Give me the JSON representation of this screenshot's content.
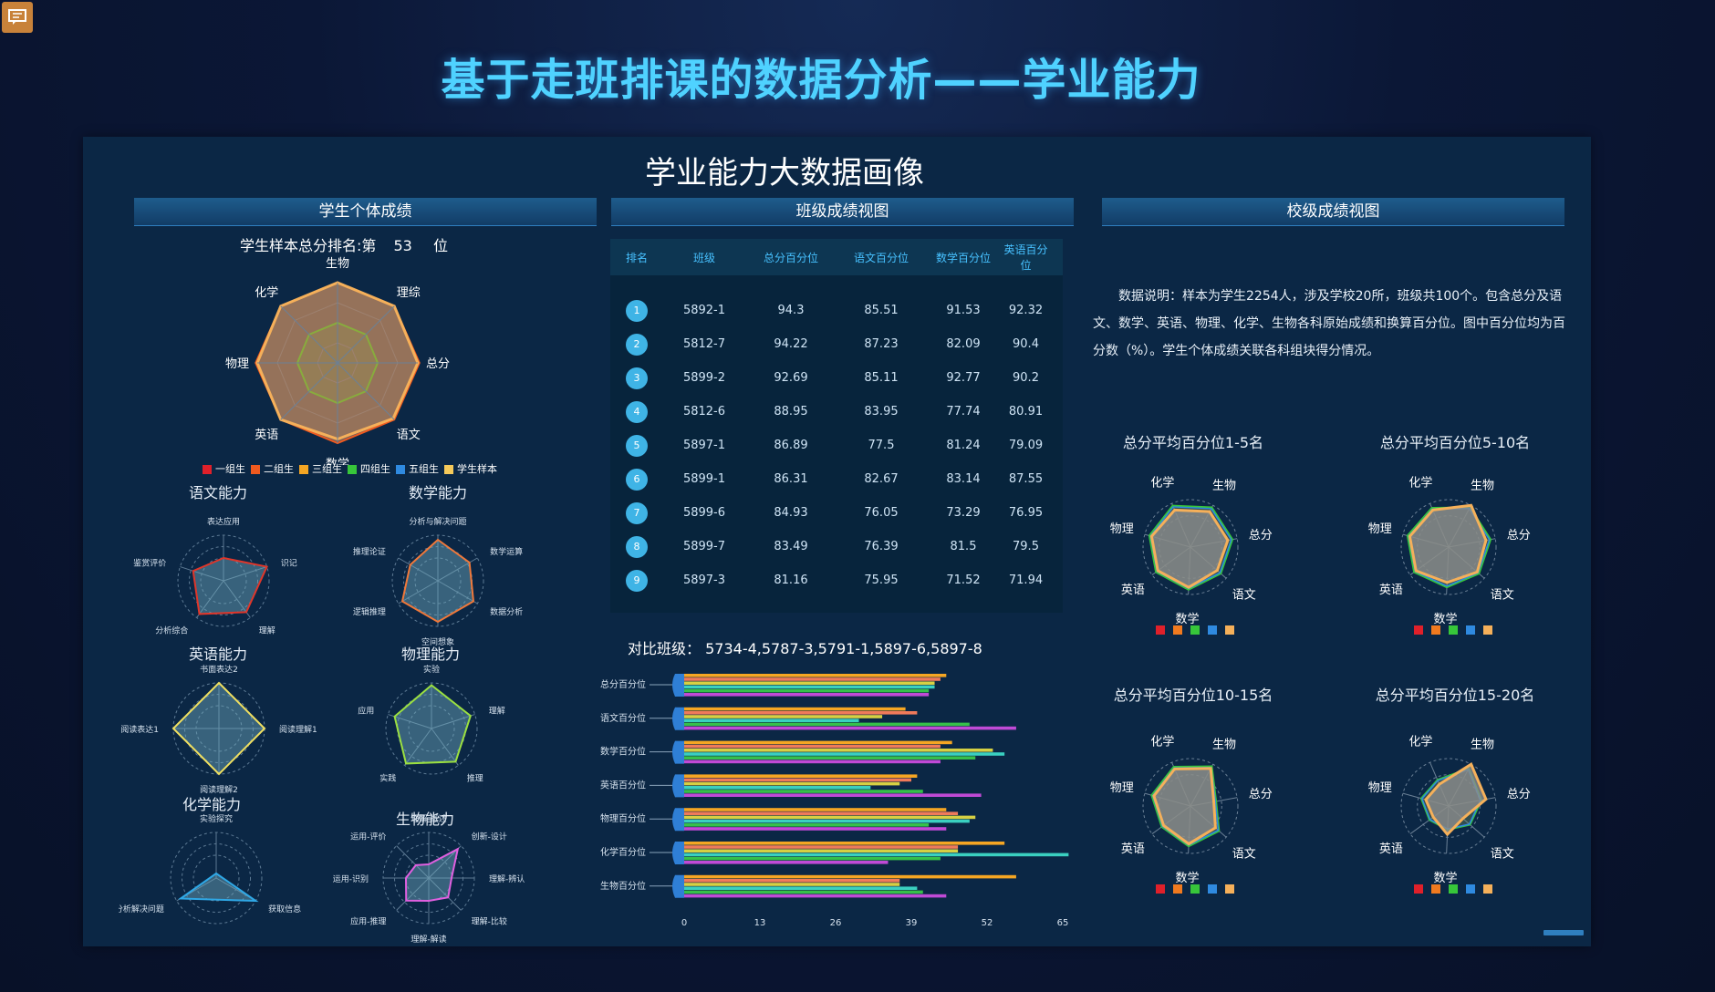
{
  "page": {
    "title": "基于走班排课的数据分析——学业能力",
    "panel_title": "学业能力大数据画像"
  },
  "sections": {
    "student": "学生个体成绩",
    "class": "班级成绩视图",
    "school": "校级成绩视图"
  },
  "student": {
    "rank_prefix": "学生样本总分排名:第",
    "rank_value": "53",
    "rank_suffix": "位",
    "main_radar": {
      "axes": [
        "生物",
        "理综",
        "总分",
        "语文",
        "数学",
        "英语",
        "物理",
        "化学"
      ],
      "legend": [
        "一组生",
        "二组生",
        "三组生",
        "四组生",
        "五组生",
        "学生样本"
      ],
      "legend_colors": [
        "#e0202a",
        "#f05a1f",
        "#f5a623",
        "#37c63a",
        "#2f8ae0",
        "#f5c95a"
      ]
    },
    "sub_radars": [
      {
        "title": "语文能力",
        "axes": [
          "表达应用",
          "识记",
          "理解",
          "分析综合",
          "鉴赏评价"
        ],
        "color": "#e0362a"
      },
      {
        "title": "数学能力",
        "axes": [
          "分析与解决问题",
          "数学运算",
          "数据分析",
          "空间想象",
          "逻辑推理",
          "推理论证"
        ],
        "color": "#f0783a"
      },
      {
        "title": "英语能力",
        "axes": [
          "书面表达2",
          "阅读理解1",
          "阅读理解2",
          "阅读表达1"
        ],
        "color": "#f0e060"
      },
      {
        "title": "物理能力",
        "axes": [
          "实验",
          "理解",
          "推理",
          "实践",
          "应用"
        ],
        "color": "#9be040"
      },
      {
        "title": "化学能力",
        "axes": [
          "实验探究",
          "获取信息",
          "分析解决问题"
        ],
        "color": "#2fa8e6"
      },
      {
        "title": "生物能力",
        "axes": [
          "理解-概述",
          "创新-设计",
          "理解-辨认",
          "理解-比较",
          "理解-解读",
          "应用-推理",
          "运用-识别",
          "运用-评价"
        ],
        "color": "#e060e0"
      }
    ]
  },
  "class_view": {
    "headers": [
      "排名",
      "班级",
      "总分百分位",
      "语文百分位",
      "数学百分位",
      "英语百分位"
    ],
    "rows": [
      {
        "rank": "1",
        "class": "5892-1",
        "total": "94.3",
        "chinese": "85.51",
        "math": "91.53",
        "english": "92.32"
      },
      {
        "rank": "2",
        "class": "5812-7",
        "total": "94.22",
        "chinese": "87.23",
        "math": "82.09",
        "english": "90.4"
      },
      {
        "rank": "3",
        "class": "5899-2",
        "total": "92.69",
        "chinese": "85.11",
        "math": "92.77",
        "english": "90.2"
      },
      {
        "rank": "4",
        "class": "5812-6",
        "total": "88.95",
        "chinese": "83.95",
        "math": "77.74",
        "english": "80.91"
      },
      {
        "rank": "5",
        "class": "5897-1",
        "total": "86.89",
        "chinese": "77.5",
        "math": "81.24",
        "english": "79.09"
      },
      {
        "rank": "6",
        "class": "5899-1",
        "total": "86.31",
        "chinese": "82.67",
        "math": "83.14",
        "english": "87.55"
      },
      {
        "rank": "7",
        "class": "5899-6",
        "total": "84.93",
        "chinese": "76.05",
        "math": "73.29",
        "english": "76.95"
      },
      {
        "rank": "8",
        "class": "5899-7",
        "total": "83.49",
        "chinese": "76.39",
        "math": "81.5",
        "english": "79.5"
      },
      {
        "rank": "9",
        "class": "5897-3",
        "total": "81.16",
        "chinese": "75.95",
        "math": "71.52",
        "english": "71.94"
      }
    ],
    "compare_label": "对比班级：",
    "compare_classes": "5734-4,5787-3,5791-1,5897-6,5897-8"
  },
  "chart_data": {
    "type": "bar",
    "orientation": "horizontal",
    "categories": [
      "总分百分位",
      "语文百分位",
      "数学百分位",
      "英语百分位",
      "物理百分位",
      "化学百分位",
      "生物百分位"
    ],
    "xlim": [
      0,
      65
    ],
    "xticks": [
      "0",
      "13",
      "26",
      "39",
      "52",
      "65"
    ],
    "series": [
      {
        "color": "#f5a623",
        "values": [
          45,
          38,
          46,
          40,
          45,
          55,
          57
        ]
      },
      {
        "color": "#f07a5a",
        "values": [
          44,
          40,
          44,
          39,
          47,
          47,
          37
        ]
      },
      {
        "color": "#d6d043",
        "values": [
          43,
          34,
          53,
          37,
          50,
          47,
          37
        ]
      },
      {
        "color": "#3ad0c0",
        "values": [
          43,
          30,
          55,
          32,
          49,
          66,
          40
        ]
      },
      {
        "color": "#36c04a",
        "values": [
          42,
          49,
          50,
          41,
          42,
          44,
          41
        ]
      },
      {
        "color": "#c04ad6",
        "values": [
          42,
          57,
          44,
          51,
          45,
          35,
          45
        ]
      }
    ]
  },
  "school": {
    "description": "数据说明：样本为学生2254人，涉及学校20所，班级共100个。包含总分及语文、数学、英语、物理、化学、生物各科原始成绩和换算百分位。图中百分位均为百分数（%）。学生个体成绩关联各科组块得分情况。",
    "charts": [
      {
        "title": "总分平均百分位1-5名"
      },
      {
        "title": "总分平均百分位5-10名"
      },
      {
        "title": "总分平均百分位10-15名"
      },
      {
        "title": "总分平均百分位15-20名"
      }
    ],
    "axes": [
      "化学",
      "生物",
      "总分",
      "语文",
      "数学",
      "英语",
      "物理"
    ],
    "legend_colors": [
      "#e0202a",
      "#f07a1f",
      "#37c63a",
      "#2f8ae0",
      "#f5b05a"
    ]
  }
}
